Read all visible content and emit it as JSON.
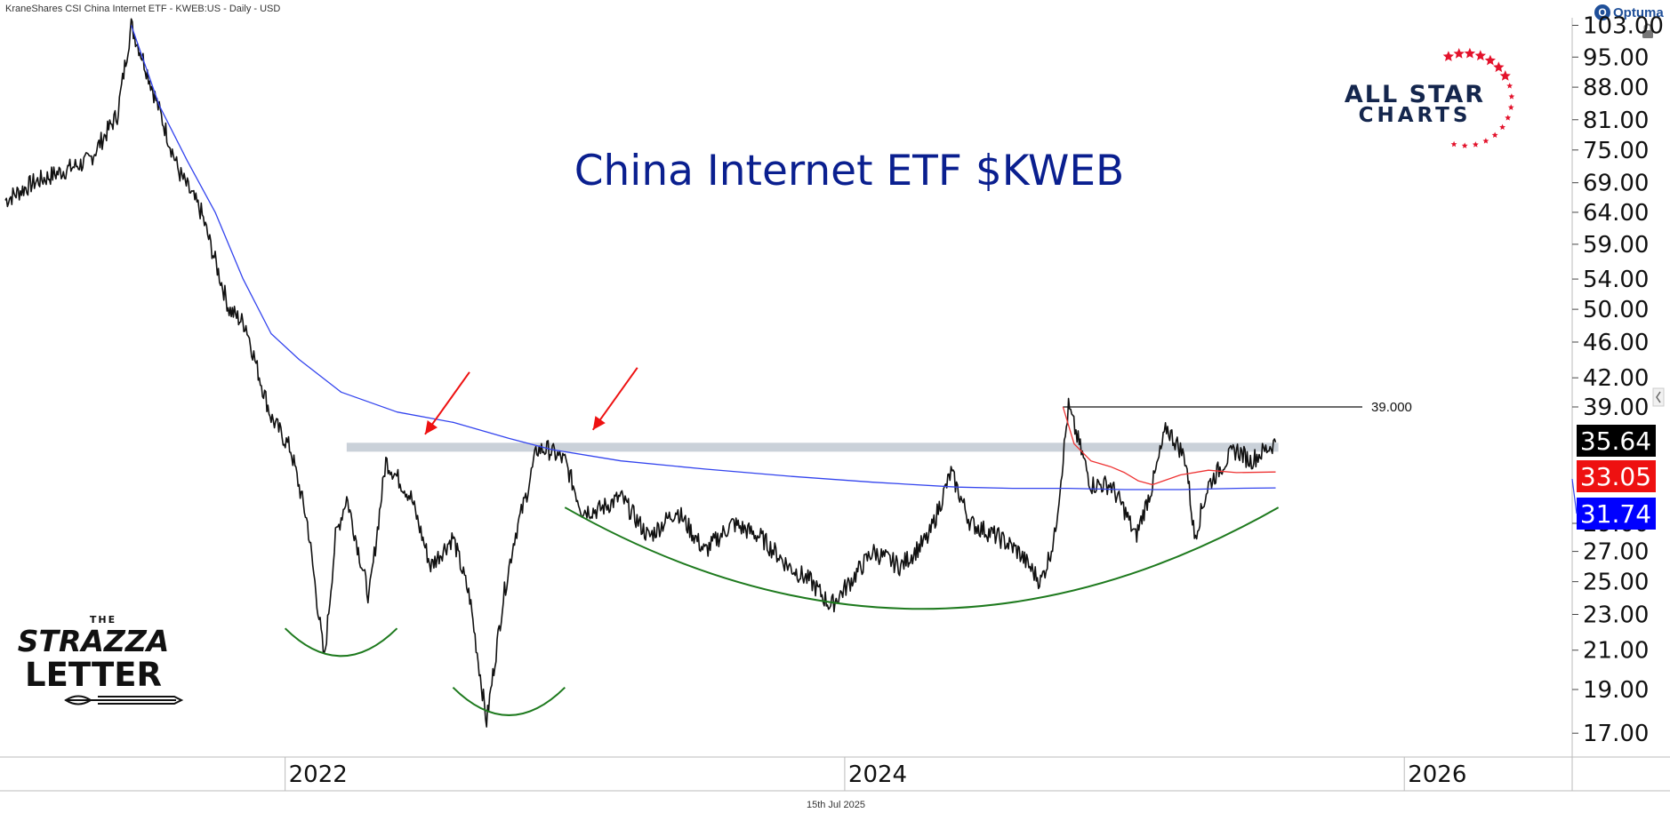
{
  "header": {
    "instrument": "KraneShares CSI China Internet ETF - KWEB:US - Daily - USD",
    "provider": "Optuma"
  },
  "footer": {
    "date": "15th Jul 2025"
  },
  "logos": {
    "all_star_line1": "ALL STAR",
    "all_star_line2": "CHARTS",
    "strazza_the": "THE",
    "strazza_line1": "STRAZZA",
    "strazza_line2": "LETTER"
  },
  "colors": {
    "title": "#0a1f8f",
    "price": "#111111",
    "ma_long": "#3344ee",
    "ma_short": "#ee3333",
    "band": "#b8c2cc",
    "arcs": "#1e7a1e",
    "arrows": "#ee1111",
    "brand_navy": "#14264d",
    "brand_red": "#e3122b"
  },
  "chart_data": {
    "type": "line",
    "title": "China Internet ETF $KWEB",
    "scale": "log",
    "ylim": [
      16,
      105
    ],
    "xlim": [
      2021.0,
      2026.6
    ],
    "x_ticks": [
      "2022",
      "2024",
      "2026"
    ],
    "y_ticks": [
      "103.00",
      "95.00",
      "88.00",
      "81.00",
      "75.00",
      "69.00",
      "64.00",
      "59.00",
      "54.00",
      "50.00",
      "46.00",
      "42.00",
      "39.00",
      "29.00",
      "27.00",
      "25.00",
      "23.00",
      "21.00",
      "19.00",
      "17.00"
    ],
    "y_tick_values": [
      103,
      95,
      88,
      81,
      75,
      69,
      64,
      59,
      54,
      50,
      46,
      42,
      39,
      29,
      27,
      25,
      23,
      21,
      19,
      17
    ],
    "last_values": [
      {
        "label": "35.64",
        "value": 35.64,
        "color": "#000000"
      },
      {
        "label": "33.05",
        "value": 33.05,
        "color": "#ee1111"
      },
      {
        "label": "31.74",
        "value": 31.74,
        "color": "#0000ff"
      }
    ],
    "series": [
      {
        "kind": "price",
        "x": [
          2021.0,
          2021.1,
          2021.2,
          2021.3,
          2021.4,
          2021.45,
          2021.5,
          2021.55,
          2021.62,
          2021.7,
          2021.8,
          2021.86,
          2021.9,
          2021.95,
          2022.02,
          2022.08,
          2022.14,
          2022.18,
          2022.22,
          2022.3,
          2022.36,
          2022.45,
          2022.52,
          2022.6,
          2022.66,
          2022.72,
          2022.78,
          2022.82,
          2022.86,
          2022.9,
          2022.94,
          2023.0,
          2023.06,
          2023.12,
          2023.2,
          2023.3,
          2023.4,
          2023.5,
          2023.55,
          2023.6,
          2023.7,
          2023.8,
          2023.88,
          2023.95,
          2024.02,
          2024.1,
          2024.2,
          2024.3,
          2024.38,
          2024.45,
          2024.55,
          2024.62,
          2024.7,
          2024.72,
          2024.75,
          2024.8,
          2024.88,
          2024.95,
          2025.0,
          2025.04,
          2025.1,
          2025.15,
          2025.2,
          2025.22,
          2025.25,
          2025.3,
          2025.36,
          2025.4,
          2025.45,
          2025.54
        ],
        "values": [
          66,
          69,
          71,
          73,
          82,
          103,
          93,
          83,
          71,
          64,
          50,
          48,
          43,
          38,
          35,
          29,
          20.5,
          28,
          31,
          24,
          34,
          31,
          26,
          28,
          24,
          17.5,
          24,
          28,
          31,
          35,
          35,
          34,
          30,
          30,
          31,
          28,
          30,
          27,
          28,
          29,
          28,
          26,
          25,
          23.5,
          25,
          27,
          26,
          28,
          33,
          29,
          28,
          27,
          25,
          26,
          28,
          39,
          32,
          32,
          30,
          28,
          32,
          37,
          35,
          34,
          28,
          32,
          34,
          35,
          34,
          35.64
        ]
      },
      {
        "kind": "ma_long",
        "x": [
          2021.45,
          2021.55,
          2021.65,
          2021.75,
          2021.85,
          2021.95,
          2022.05,
          2022.2,
          2022.4,
          2022.6,
          2022.8,
          2022.95,
          2023.2,
          2023.5,
          2023.8,
          2024.1,
          2024.4,
          2024.6,
          2024.8,
          2025.0,
          2025.2,
          2025.4,
          2025.54
        ],
        "values": [
          103,
          84,
          73,
          64,
          54,
          47,
          44,
          40.5,
          38.5,
          37.5,
          36,
          35,
          34,
          33.3,
          32.7,
          32.2,
          31.8,
          31.7,
          31.7,
          31.6,
          31.6,
          31.7,
          31.74
        ]
      },
      {
        "kind": "ma_short",
        "x": [
          2024.78,
          2024.82,
          2024.88,
          2024.95,
          2025.0,
          2025.05,
          2025.1,
          2025.2,
          2025.3,
          2025.4,
          2025.54
        ],
        "values": [
          39,
          35.5,
          34,
          33.5,
          33,
          32.3,
          32.0,
          32.8,
          33.2,
          33.0,
          33.05
        ]
      }
    ],
    "annotations": {
      "resistance_band": {
        "low": 34.8,
        "high": 35.6,
        "x": [
          2022.22,
          2025.55
        ]
      },
      "resistance_line": {
        "label": "39.000",
        "value": 39,
        "x": [
          2024.78,
          2025.85
        ]
      },
      "arrows": [
        {
          "x": 2022.5,
          "y": 35.4
        },
        {
          "x": 2023.1,
          "y": 35.8
        }
      ],
      "arcs": [
        {
          "x0": 2022.0,
          "x1": 2022.4,
          "top": 22.2,
          "bottom": 20
        },
        {
          "x0": 2022.6,
          "x1": 2023.0,
          "top": 19.1,
          "bottom": 17.2
        },
        {
          "x0": 2023.0,
          "x1": 2025.55,
          "top": 30.2,
          "bottom": 20.6
        }
      ]
    }
  }
}
